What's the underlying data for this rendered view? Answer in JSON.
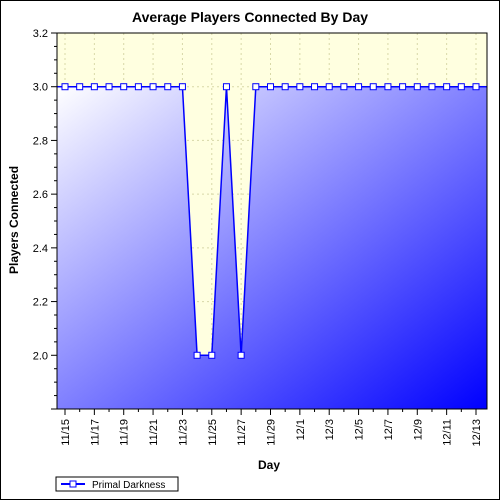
{
  "chart_data": {
    "type": "line",
    "title": "Average Players Connected By Day",
    "xlabel": "Day",
    "ylabel": "Players Connected",
    "categories": [
      "11/15",
      "11/16",
      "11/17",
      "11/18",
      "11/19",
      "11/20",
      "11/21",
      "11/22",
      "11/23",
      "11/24",
      "11/25",
      "11/26",
      "11/27",
      "11/28",
      "11/29",
      "11/30",
      "12/1",
      "12/2",
      "12/3",
      "12/4",
      "12/5",
      "12/6",
      "12/7",
      "12/8",
      "12/9",
      "12/10",
      "12/11",
      "12/12",
      "12/13"
    ],
    "x_tick_labels": [
      "11/15",
      "11/17",
      "11/19",
      "11/21",
      "11/23",
      "11/25",
      "11/27",
      "11/29",
      "12/1",
      "12/3",
      "12/5",
      "12/7",
      "12/9",
      "12/11",
      "12/13"
    ],
    "y_tick_labels": [
      "2.0",
      "2.2",
      "2.4",
      "2.6",
      "2.8",
      "3.0",
      "3.2"
    ],
    "ylim": [
      1.8,
      3.2
    ],
    "y_ticks": [
      2.0,
      2.2,
      2.4,
      2.6,
      2.8,
      3.0,
      3.2
    ],
    "grid": true,
    "legend_position": "bottom-left",
    "series": [
      {
        "name": "Primal Darkness",
        "color": "#0000ff",
        "values": [
          3,
          3,
          3,
          3,
          3,
          3,
          3,
          3,
          3,
          2,
          2,
          3,
          2,
          3,
          3,
          3,
          3,
          3,
          3,
          3,
          3,
          3,
          3,
          3,
          3,
          3,
          3,
          3,
          3
        ]
      }
    ],
    "colors": {
      "plot_background": "#ffffe0",
      "gradient_start": "#ffffff",
      "gradient_end": "#0000ff"
    }
  }
}
